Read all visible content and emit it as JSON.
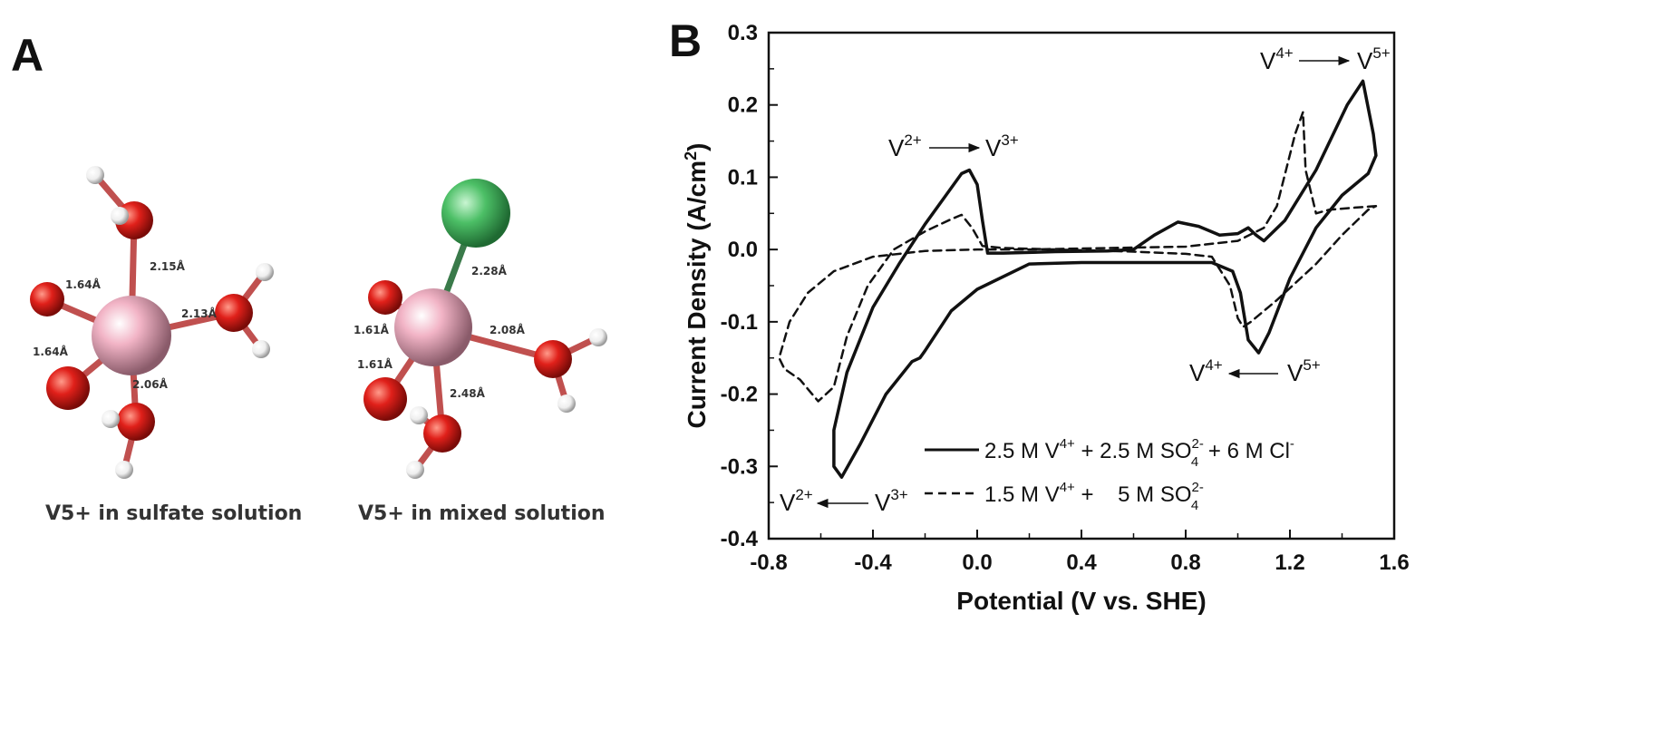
{
  "panel_a": {
    "letter": "A",
    "left_caption": "V5+ in sulfate solution",
    "right_caption": "V5+ in mixed solution",
    "left_bonds": [
      "2.15Å",
      "1.64Å",
      "2.13Å",
      "1.64Å",
      "2.06Å"
    ],
    "right_bonds": [
      "2.28Å",
      "1.61Å",
      "2.08Å",
      "1.61Å",
      "2.48Å"
    ],
    "colors": {
      "vanadium": "#f2b4c6",
      "oxygen": "#e0201a",
      "hydrogen": "#f2f2f2",
      "chlorine": "#4cbf66",
      "bond": "#c0504f"
    }
  },
  "chart_data": {
    "type": "line",
    "panel_letter": "B",
    "xlabel": "Potential (V vs. SHE)",
    "ylabel": "Current Density (A/cm2)",
    "ylabel_parts": {
      "main": "Current Density (A/cm",
      "sup": "2",
      "tail": ")"
    },
    "xlim": [
      -0.8,
      1.6
    ],
    "ylim": [
      -0.4,
      0.3
    ],
    "xticks": [
      "-0.8",
      "-0.4",
      "0.0",
      "0.4",
      "0.8",
      "1.2",
      "1.6"
    ],
    "yticks": [
      "0.3",
      "0.2",
      "0.1",
      "0.0",
      "-0.1",
      "-0.2",
      "-0.3",
      "-0.4"
    ],
    "grid": false,
    "legend_position": "bottom-center",
    "series": [
      {
        "legend": {
          "p1": "2.5 M V",
          "s1": "4+",
          "p2": " + 2.5 M SO",
          "sup2": "2-",
          "sub2": "4",
          "p3": " + 6 M Cl",
          "sup3": "-"
        },
        "style": "solid",
        "points": [
          [
            0.04,
            -0.005
          ],
          [
            0.1,
            -0.005
          ],
          [
            0.3,
            -0.003
          ],
          [
            0.5,
            -0.002
          ],
          [
            0.6,
            0.0
          ],
          [
            0.68,
            0.02
          ],
          [
            0.77,
            0.038
          ],
          [
            0.85,
            0.032
          ],
          [
            0.93,
            0.02
          ],
          [
            1.0,
            0.022
          ],
          [
            1.04,
            0.03
          ],
          [
            1.07,
            0.02
          ],
          [
            1.1,
            0.012
          ],
          [
            1.18,
            0.04
          ],
          [
            1.3,
            0.11
          ],
          [
            1.42,
            0.2
          ],
          [
            1.48,
            0.233
          ],
          [
            1.52,
            0.16
          ],
          [
            1.53,
            0.13
          ],
          [
            1.5,
            0.105
          ],
          [
            1.4,
            0.075
          ],
          [
            1.3,
            0.03
          ],
          [
            1.2,
            -0.04
          ],
          [
            1.12,
            -0.115
          ],
          [
            1.08,
            -0.143
          ],
          [
            1.04,
            -0.125
          ],
          [
            1.01,
            -0.06
          ],
          [
            0.98,
            -0.03
          ],
          [
            0.9,
            -0.018
          ],
          [
            0.8,
            -0.018
          ],
          [
            0.6,
            -0.018
          ],
          [
            0.4,
            -0.018
          ],
          [
            0.2,
            -0.02
          ],
          [
            0.0,
            -0.055
          ],
          [
            -0.1,
            -0.085
          ],
          [
            -0.2,
            -0.14
          ],
          [
            -0.22,
            -0.15
          ],
          [
            -0.25,
            -0.155
          ],
          [
            -0.35,
            -0.2
          ],
          [
            -0.45,
            -0.27
          ],
          [
            -0.52,
            -0.315
          ],
          [
            -0.55,
            -0.3
          ],
          [
            -0.55,
            -0.25
          ],
          [
            -0.5,
            -0.17
          ],
          [
            -0.4,
            -0.08
          ],
          [
            -0.3,
            -0.02
          ],
          [
            -0.2,
            0.035
          ],
          [
            -0.12,
            0.075
          ],
          [
            -0.06,
            0.105
          ],
          [
            -0.03,
            0.11
          ],
          [
            0.0,
            0.09
          ],
          [
            0.02,
            0.04
          ],
          [
            0.04,
            -0.005
          ]
        ]
      },
      {
        "legend": {
          "p1": "1.5 M V",
          "s1": "4+",
          "p2": " +    5 M SO",
          "sup2": "2-",
          "sub2": "4",
          "p3": "",
          "sup3": ""
        },
        "style": "dashed",
        "points": [
          [
            1.53,
            0.06
          ],
          [
            1.45,
            0.058
          ],
          [
            1.35,
            0.055
          ],
          [
            1.3,
            0.05
          ],
          [
            1.26,
            0.11
          ],
          [
            1.25,
            0.19
          ],
          [
            1.22,
            0.16
          ],
          [
            1.15,
            0.06
          ],
          [
            1.1,
            0.03
          ],
          [
            1.0,
            0.012
          ],
          [
            0.8,
            0.004
          ],
          [
            0.5,
            0.002
          ],
          [
            0.2,
            0.0
          ],
          [
            0.0,
            0.0
          ],
          [
            -0.2,
            -0.002
          ],
          [
            -0.4,
            -0.01
          ],
          [
            -0.55,
            -0.03
          ],
          [
            -0.65,
            -0.06
          ],
          [
            -0.72,
            -0.1
          ],
          [
            -0.76,
            -0.15
          ],
          [
            -0.74,
            -0.165
          ],
          [
            -0.68,
            -0.18
          ],
          [
            -0.61,
            -0.21
          ],
          [
            -0.55,
            -0.19
          ],
          [
            -0.5,
            -0.12
          ],
          [
            -0.42,
            -0.05
          ],
          [
            -0.32,
            0.0
          ],
          [
            -0.2,
            0.025
          ],
          [
            -0.1,
            0.042
          ],
          [
            -0.06,
            0.048
          ],
          [
            -0.02,
            0.03
          ],
          [
            0.02,
            0.005
          ],
          [
            0.1,
            0.002
          ],
          [
            0.3,
            0.0
          ],
          [
            0.6,
            -0.003
          ],
          [
            0.8,
            -0.006
          ],
          [
            0.9,
            -0.01
          ],
          [
            0.97,
            -0.05
          ],
          [
            1.0,
            -0.095
          ],
          [
            1.02,
            -0.107
          ],
          [
            1.05,
            -0.1
          ],
          [
            1.15,
            -0.07
          ],
          [
            1.3,
            -0.02
          ],
          [
            1.4,
            0.02
          ],
          [
            1.5,
            0.055
          ],
          [
            1.53,
            0.06
          ]
        ]
      }
    ],
    "annotations": [
      {
        "id": "v2-v3-upper",
        "from": "V",
        "from_sup": "2+",
        "to": "V",
        "to_sup": "3+",
        "direction": "right"
      },
      {
        "id": "v4-v5-upper",
        "from": "V",
        "from_sup": "4+",
        "to": "V",
        "to_sup": "5+",
        "direction": "right"
      },
      {
        "id": "v4-v5-lower",
        "from": "V",
        "from_sup": "4+",
        "to": "V",
        "to_sup": "5+",
        "direction": "left"
      },
      {
        "id": "v2-v3-lower",
        "from": "V",
        "from_sup": "2+",
        "to": "V",
        "to_sup": "3+",
        "direction": "left"
      }
    ]
  }
}
